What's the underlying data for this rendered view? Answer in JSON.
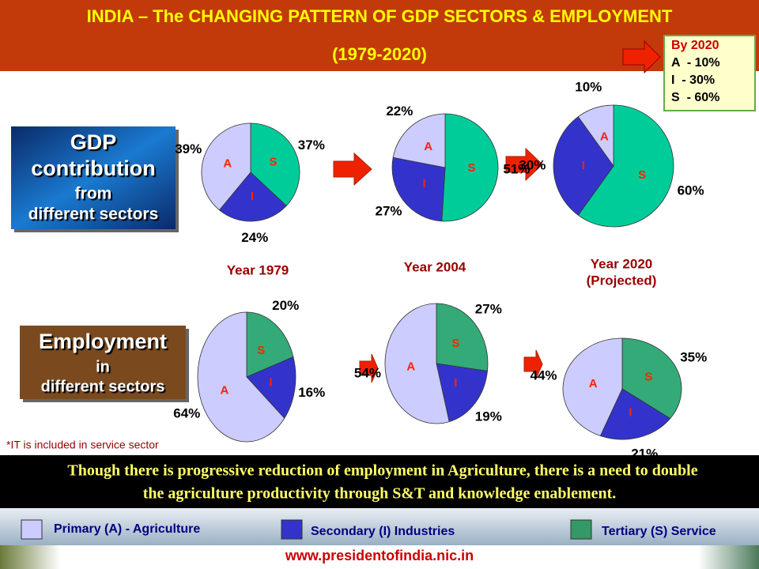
{
  "header": {
    "title": "INDIA – The CHANGING  PATTERN OF GDP SECTORS & EMPLOYMENT",
    "subtitle": "(1979-2020)"
  },
  "callout": {
    "title": "By 2020",
    "lines": [
      "A  - 10%",
      "I  - 30%",
      "S  - 60%"
    ]
  },
  "row_labels": {
    "gdp": [
      "GDP",
      "contribution",
      "from",
      "different sectors"
    ],
    "employment": [
      "Employment",
      "in",
      "different sectors"
    ]
  },
  "chart_data": [
    {
      "type": "pie",
      "title": "Year 1979",
      "categories": [
        "S",
        "I",
        "A"
      ],
      "values": [
        37,
        24,
        39
      ],
      "value_labels": [
        "37%",
        "24%",
        "39%"
      ],
      "colors": [
        "#00cc99",
        "#3333cc",
        "#ccccff"
      ]
    },
    {
      "type": "pie",
      "title": "Year 2004",
      "categories": [
        "S",
        "I",
        "A"
      ],
      "values": [
        51,
        27,
        22
      ],
      "value_labels": [
        "51%",
        "27%",
        "22%"
      ],
      "colors": [
        "#00cc99",
        "#3333cc",
        "#ccccff"
      ]
    },
    {
      "type": "pie",
      "title": "Year 2020",
      "subtitle": "(Projected)",
      "categories": [
        "S",
        "I",
        "A"
      ],
      "values": [
        60,
        30,
        10
      ],
      "value_labels": [
        "60%",
        "30%",
        "10%"
      ],
      "colors": [
        "#00cc99",
        "#3333cc",
        "#ccccff"
      ]
    },
    {
      "type": "pie",
      "categories": [
        "S",
        "I",
        "A"
      ],
      "values": [
        20,
        16,
        64
      ],
      "value_labels": [
        "20%",
        "16%",
        "64%"
      ],
      "colors": [
        "#33aa77",
        "#3333cc",
        "#ccccff"
      ]
    },
    {
      "type": "pie",
      "categories": [
        "S",
        "I",
        "A"
      ],
      "values": [
        27,
        19,
        54
      ],
      "value_labels": [
        "27%",
        "19%",
        "54%"
      ],
      "colors": [
        "#33aa77",
        "#3333cc",
        "#ccccff"
      ]
    },
    {
      "type": "pie",
      "categories": [
        "S",
        "I",
        "A"
      ],
      "values": [
        35,
        21,
        44
      ],
      "value_labels": [
        "35%",
        "21%",
        "44%"
      ],
      "colors": [
        "#33aa77",
        "#3333cc",
        "#ccccff"
      ]
    }
  ],
  "note": "*IT is included in service sector",
  "message": [
    "Though there is progressive reduction of  employment in Agriculture, there is a need to double",
    "the agriculture productivity through S&T and knowledge enablement."
  ],
  "legend": [
    {
      "name": "Primary (A) - Agriculture",
      "color": "#ccccff"
    },
    {
      "name": "Secondary (I) Industries",
      "color": "#3333cc"
    },
    {
      "name": "Tertiary (S) Service",
      "color": "#339966"
    }
  ],
  "footer": "www.presidentofindia.nic.in"
}
